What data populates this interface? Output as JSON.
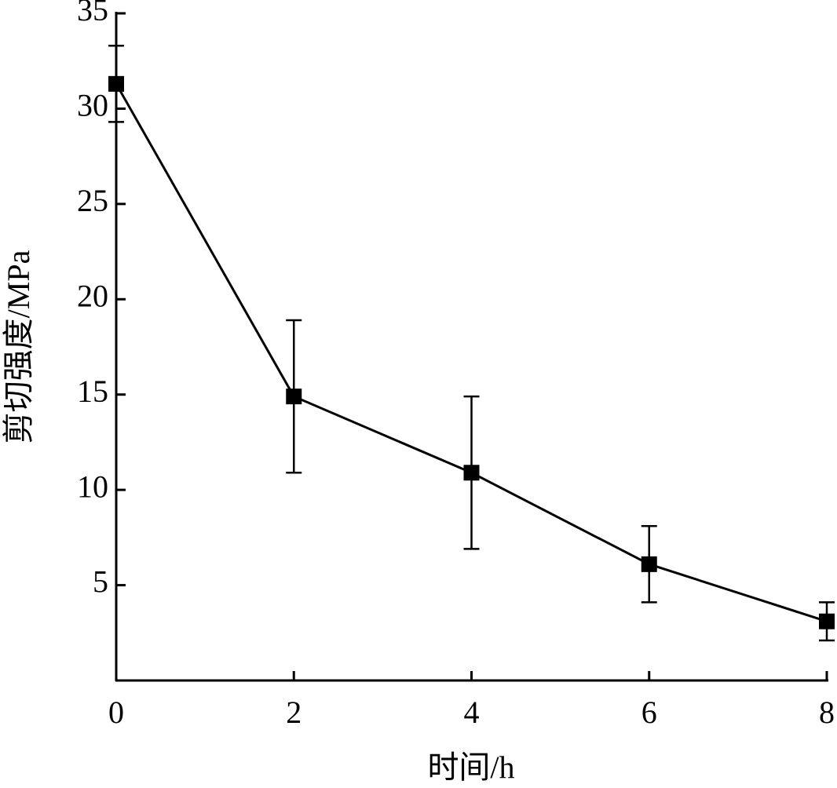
{
  "chart_data": {
    "type": "line",
    "x_label": "时间/h",
    "y_label": "剪切强度/MPa",
    "x": [
      0,
      2,
      4,
      6,
      8
    ],
    "values": [
      31.3,
      14.9,
      10.9,
      6.1,
      3.1
    ],
    "errors": [
      2,
      4,
      4,
      2,
      1
    ],
    "color": "#000000",
    "marker": "square",
    "xlim": [
      0,
      8
    ],
    "xticks": [
      0,
      2,
      4,
      6,
      8
    ],
    "ylim": [
      0,
      35
    ],
    "yticks": [
      5,
      10,
      15,
      20,
      25,
      30,
      35
    ],
    "grid": false
  }
}
